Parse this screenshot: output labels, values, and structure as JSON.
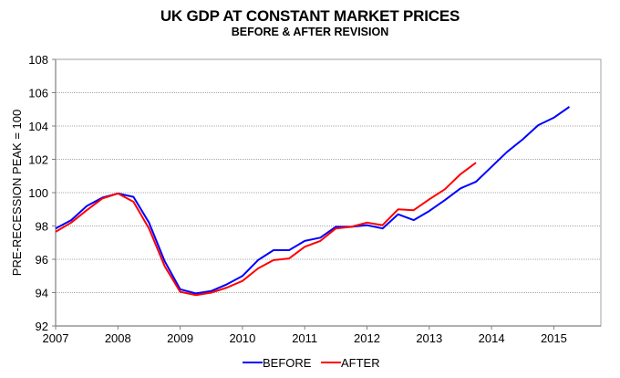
{
  "chart_data": {
    "type": "line",
    "title": "UK GDP AT CONSTANT MARKET PRICES",
    "subtitle": "BEFORE & AFTER REVISION",
    "xlabel": "",
    "ylabel": "PRE-RECESSION PEAK = 100",
    "xlim": [
      2007,
      2015.75
    ],
    "ylim": [
      92,
      108
    ],
    "x_ticks": [
      2007,
      2008,
      2009,
      2010,
      2011,
      2012,
      2013,
      2014,
      2015
    ],
    "x_tick_labels": [
      "2007",
      "2008",
      "2009",
      "2010",
      "2011",
      "2012",
      "2013",
      "2014",
      "2015"
    ],
    "y_ticks": [
      92,
      94,
      96,
      98,
      100,
      102,
      104,
      106,
      108
    ],
    "y_tick_labels": [
      "92",
      "94",
      "96",
      "98",
      "100",
      "102",
      "104",
      "106",
      "108"
    ],
    "grid": true,
    "legend_position": "bottom",
    "series": [
      {
        "name": "BEFORE",
        "color": "#0000ff",
        "x": [
          2007.0,
          2007.25,
          2007.5,
          2007.75,
          2008.0,
          2008.25,
          2008.5,
          2008.75,
          2009.0,
          2009.25,
          2009.5,
          2009.75,
          2010.0,
          2010.25,
          2010.5,
          2010.75,
          2011.0,
          2011.25,
          2011.5,
          2011.75,
          2012.0,
          2012.25,
          2012.5,
          2012.75,
          2013.0,
          2013.25,
          2013.5,
          2013.75,
          2014.0,
          2014.25,
          2014.5,
          2014.75,
          2015.0,
          2015.25
        ],
        "values": [
          97.85,
          98.35,
          99.2,
          99.7,
          99.95,
          99.75,
          98.2,
          95.9,
          94.2,
          93.95,
          94.1,
          94.5,
          95.0,
          95.95,
          96.55,
          96.55,
          97.1,
          97.3,
          97.95,
          97.95,
          98.05,
          97.85,
          98.7,
          98.35,
          98.9,
          99.55,
          100.25,
          100.65,
          101.55,
          102.45,
          103.2,
          104.05,
          104.5,
          105.15
        ]
      },
      {
        "name": "AFTER",
        "color": "#ff0000",
        "x": [
          2007.0,
          2007.25,
          2007.5,
          2007.75,
          2008.0,
          2008.25,
          2008.5,
          2008.75,
          2009.0,
          2009.25,
          2009.5,
          2009.75,
          2010.0,
          2010.25,
          2010.5,
          2010.75,
          2011.0,
          2011.25,
          2011.5,
          2011.75,
          2012.0,
          2012.25,
          2012.5,
          2012.75,
          2013.0,
          2013.25,
          2013.5,
          2013.75
        ],
        "values": [
          97.65,
          98.2,
          98.95,
          99.65,
          99.95,
          99.45,
          97.85,
          95.6,
          94.05,
          93.85,
          94.0,
          94.3,
          94.7,
          95.45,
          95.95,
          96.05,
          96.75,
          97.1,
          97.85,
          97.95,
          98.2,
          98.05,
          99.0,
          98.95,
          99.6,
          100.2,
          101.1,
          101.8
        ]
      }
    ]
  }
}
